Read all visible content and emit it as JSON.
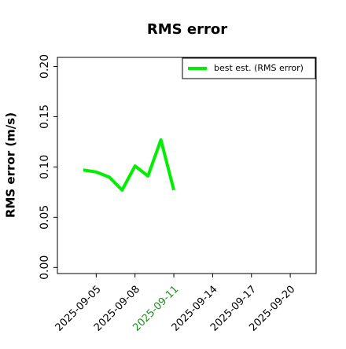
{
  "chart_data": {
    "type": "line",
    "title": "RMS error",
    "y_label": "RMS error (m/s)",
    "x": [
      "2025-09-04",
      "2025-09-05",
      "2025-09-06",
      "2025-09-07",
      "2025-09-08",
      "2025-09-09",
      "2025-09-10",
      "2025-09-11"
    ],
    "series": [
      {
        "name": "best est. (RMS error)",
        "color": "#00ee00",
        "values": [
          0.097,
          0.095,
          0.09,
          0.077,
          0.101,
          0.091,
          0.127,
          0.077
        ]
      }
    ],
    "xlim": [
      "2025-09-02",
      "2025-09-22"
    ],
    "xticks": [
      "2025-09-05",
      "2025-09-08",
      "2025-09-11",
      "2025-09-14",
      "2025-09-17",
      "2025-09-20"
    ],
    "xtick_colors": [
      "#000000",
      "#000000",
      "#228b22",
      "#000000",
      "#000000",
      "#000000"
    ],
    "ylim": [
      -0.006,
      0.209
    ],
    "yticks": [
      {
        "value": 0,
        "label": "0.00"
      },
      {
        "value": 0.05,
        "label": "0.05"
      },
      {
        "value": 0.1,
        "label": "0.10"
      },
      {
        "value": 0.15,
        "label": "0.15"
      },
      {
        "value": 0.2,
        "label": "0.20"
      }
    ],
    "legend": "upper right"
  }
}
